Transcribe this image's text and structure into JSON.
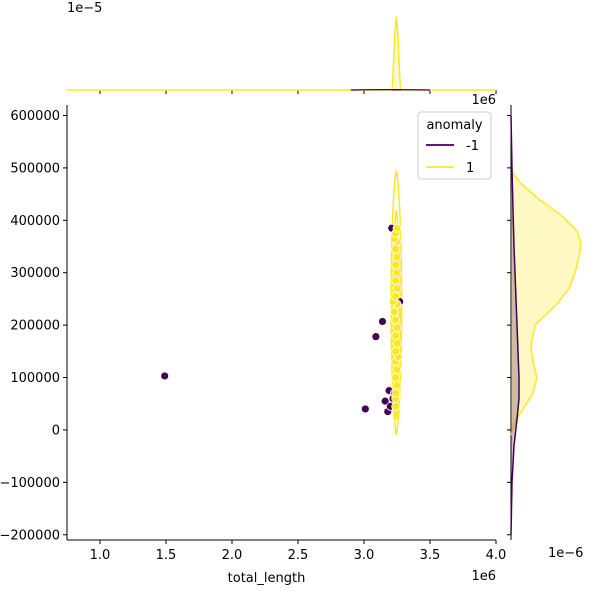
{
  "chart_data": {
    "type": "scatter",
    "subtype": "jointplot_with_kde",
    "xlabel": "total_length",
    "ylabel": "",
    "x_offset_label": "1e6",
    "y_offset_label": "",
    "top_marginal_offset_label": "1e−5",
    "right_marginal_offset_label": "1e6",
    "right_marginal_bottom_offset_label": "1e−6",
    "xlim": [
      0.75,
      4.0
    ],
    "ylim": [
      -210000,
      620000
    ],
    "x_ticks": [
      {
        "value": 1.0,
        "label": "1.0"
      },
      {
        "value": 1.5,
        "label": "1.5"
      },
      {
        "value": 2.0,
        "label": "2.0"
      },
      {
        "value": 2.5,
        "label": "2.5"
      },
      {
        "value": 3.0,
        "label": "3.0"
      },
      {
        "value": 3.5,
        "label": "3.5"
      },
      {
        "value": 4.0,
        "label": "4.0"
      }
    ],
    "y_ticks": [
      {
        "value": -200000,
        "label": "−200000"
      },
      {
        "value": -100000,
        "label": "−100000"
      },
      {
        "value": 0,
        "label": "0"
      },
      {
        "value": 100000,
        "label": "100000"
      },
      {
        "value": 200000,
        "label": "200000"
      },
      {
        "value": 300000,
        "label": "300000"
      },
      {
        "value": 400000,
        "label": "400000"
      },
      {
        "value": 500000,
        "label": "500000"
      },
      {
        "value": 600000,
        "label": "600000"
      }
    ],
    "legend": {
      "title": "anomaly",
      "position": "upper-right",
      "entries": [
        {
          "label": "-1",
          "color": "#440154"
        },
        {
          "label": "1",
          "color": "#fde725"
        }
      ]
    },
    "series": [
      {
        "name": "-1",
        "color": "#440154",
        "points": [
          {
            "x": 1.49,
            "y": 103000
          },
          {
            "x": 3.01,
            "y": 40000
          },
          {
            "x": 3.09,
            "y": 178000
          },
          {
            "x": 3.14,
            "y": 207000
          },
          {
            "x": 3.16,
            "y": 55000
          },
          {
            "x": 3.18,
            "y": 35000
          },
          {
            "x": 3.19,
            "y": 75000
          },
          {
            "x": 3.2,
            "y": 45000
          },
          {
            "x": 3.21,
            "y": 385000
          },
          {
            "x": 3.22,
            "y": 60000
          },
          {
            "x": 3.23,
            "y": 70000
          },
          {
            "x": 3.27,
            "y": 245000
          }
        ]
      },
      {
        "name": "1",
        "color": "#fde725",
        "points": [
          {
            "x": 3.24,
            "y": 45000
          },
          {
            "x": 3.24,
            "y": 60000
          },
          {
            "x": 3.24,
            "y": 70000
          },
          {
            "x": 3.25,
            "y": 85000
          },
          {
            "x": 3.24,
            "y": 100000
          },
          {
            "x": 3.25,
            "y": 115000
          },
          {
            "x": 3.24,
            "y": 130000
          },
          {
            "x": 3.26,
            "y": 140000
          },
          {
            "x": 3.24,
            "y": 150000
          },
          {
            "x": 3.25,
            "y": 165000
          },
          {
            "x": 3.24,
            "y": 180000
          },
          {
            "x": 3.25,
            "y": 195000
          },
          {
            "x": 3.24,
            "y": 210000
          },
          {
            "x": 3.23,
            "y": 225000
          },
          {
            "x": 3.25,
            "y": 240000
          },
          {
            "x": 3.22,
            "y": 245000
          },
          {
            "x": 3.24,
            "y": 255000
          },
          {
            "x": 3.25,
            "y": 270000
          },
          {
            "x": 3.24,
            "y": 285000
          },
          {
            "x": 3.25,
            "y": 300000
          },
          {
            "x": 3.24,
            "y": 315000
          },
          {
            "x": 3.25,
            "y": 330000
          },
          {
            "x": 3.24,
            "y": 345000
          },
          {
            "x": 3.25,
            "y": 360000
          },
          {
            "x": 3.23,
            "y": 365000
          },
          {
            "x": 3.24,
            "y": 375000
          },
          {
            "x": 3.25,
            "y": 385000
          }
        ]
      }
    ]
  }
}
